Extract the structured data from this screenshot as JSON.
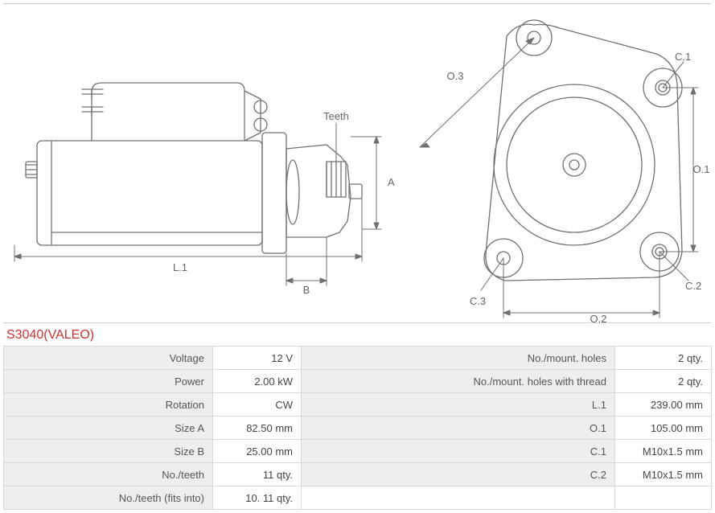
{
  "title": "S3040(VALEO)",
  "title_color": "#cc3333",
  "diagram": {
    "stroke": "#707070",
    "fill": "#ffffff",
    "labels": {
      "L1": "L.1",
      "B": "B",
      "A": "A",
      "Teeth": "Teeth",
      "O1": "O.1",
      "O2": "O.2",
      "O3": "O.3",
      "C1": "C.1",
      "C2": "C.2",
      "C3": "C.3"
    },
    "label_color": "#666666",
    "label_fontsize": 13
  },
  "table": {
    "header_bg": "#eeeeee",
    "cell_bg": "#ffffff",
    "border_color": "#d8d8d8",
    "text_color_label": "#555555",
    "text_color_value": "#444444",
    "font_size": 13,
    "left": [
      {
        "label": "Voltage",
        "value": "12 V"
      },
      {
        "label": "Power",
        "value": "2.00 kW"
      },
      {
        "label": "Rotation",
        "value": "CW"
      },
      {
        "label": "Size A",
        "value": "82.50 mm"
      },
      {
        "label": "Size B",
        "value": "25.00 mm"
      },
      {
        "label": "No./teeth",
        "value": "11 qty."
      },
      {
        "label": "No./teeth (fits into)",
        "value": "10. 11 qty."
      }
    ],
    "right": [
      {
        "label": "No./mount. holes",
        "value": "2 qty."
      },
      {
        "label": "No./mount. holes with thread",
        "value": "2 qty."
      },
      {
        "label": "L.1",
        "value": "239.00 mm"
      },
      {
        "label": "O.1",
        "value": "105.00 mm"
      },
      {
        "label": "C.1",
        "value": "M10x1.5 mm"
      },
      {
        "label": "C.2",
        "value": "M10x1.5 mm"
      }
    ]
  }
}
